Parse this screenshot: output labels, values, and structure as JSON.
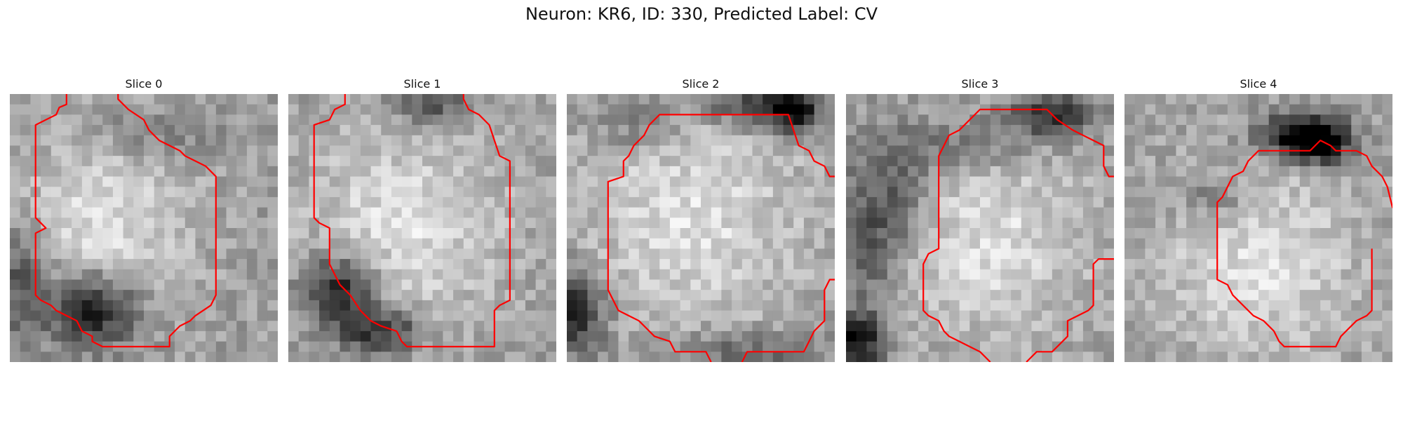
{
  "figure": {
    "title": "Neuron: KR6, ID: 330, Predicted Label: CV"
  },
  "panels": [
    {
      "title": "Slice 0",
      "contour_color": "#ff0000"
    },
    {
      "title": "Slice 1",
      "contour_color": "#ff0000"
    },
    {
      "title": "Slice 2",
      "contour_color": "#ff0000"
    },
    {
      "title": "Slice 3",
      "contour_color": "#ff0000"
    },
    {
      "title": "Slice 4",
      "contour_color": "#ff0000"
    }
  ],
  "colormap": "gray",
  "axis": "off"
}
